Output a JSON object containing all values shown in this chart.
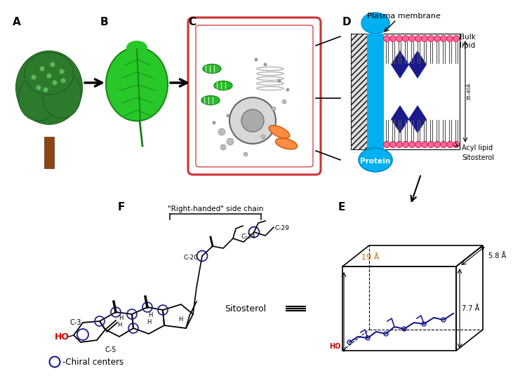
{
  "background_color": "#ffffff",
  "label_A": "A",
  "label_B": "B",
  "label_C": "C",
  "label_D": "D",
  "label_E": "E",
  "label_F": "F",
  "plasma_membrane_text": "Plasma membrane",
  "bulk_lipid_text": "Bulk\nlipid",
  "protein_text": "Protein",
  "acyl_lipid_text": "Acyl lipid",
  "sitosterol_text": "Sitosterol",
  "right_handed_text": "\"Right-handed\" side chain",
  "c3_text": "C-3",
  "c5_text": "C-5",
  "c20_text": "C-20",
  "c24_text": "C-24",
  "c29_text": "C-29",
  "ho_text": "HO",
  "sitosterol_label": "Sitosterol",
  "chiral_text": "-Chiral centers",
  "dim_19": "19 Å",
  "dim_58": "5.8 Å",
  "dim_77": "7.7 Å",
  "dim_3540": "35-40Å",
  "arrow_color": "#000000",
  "blue_color": "#1a1a8c",
  "cyan_color": "#00b0f0",
  "red_color": "#cc0000",
  "pink_color": "#ff6699",
  "orange_color": "#ff8c00",
  "green_color": "#228B22",
  "gray_color": "#888888",
  "tree_green": "#2d7a2d",
  "leaf_green": "#28a428",
  "cell_red": "#cc3333"
}
